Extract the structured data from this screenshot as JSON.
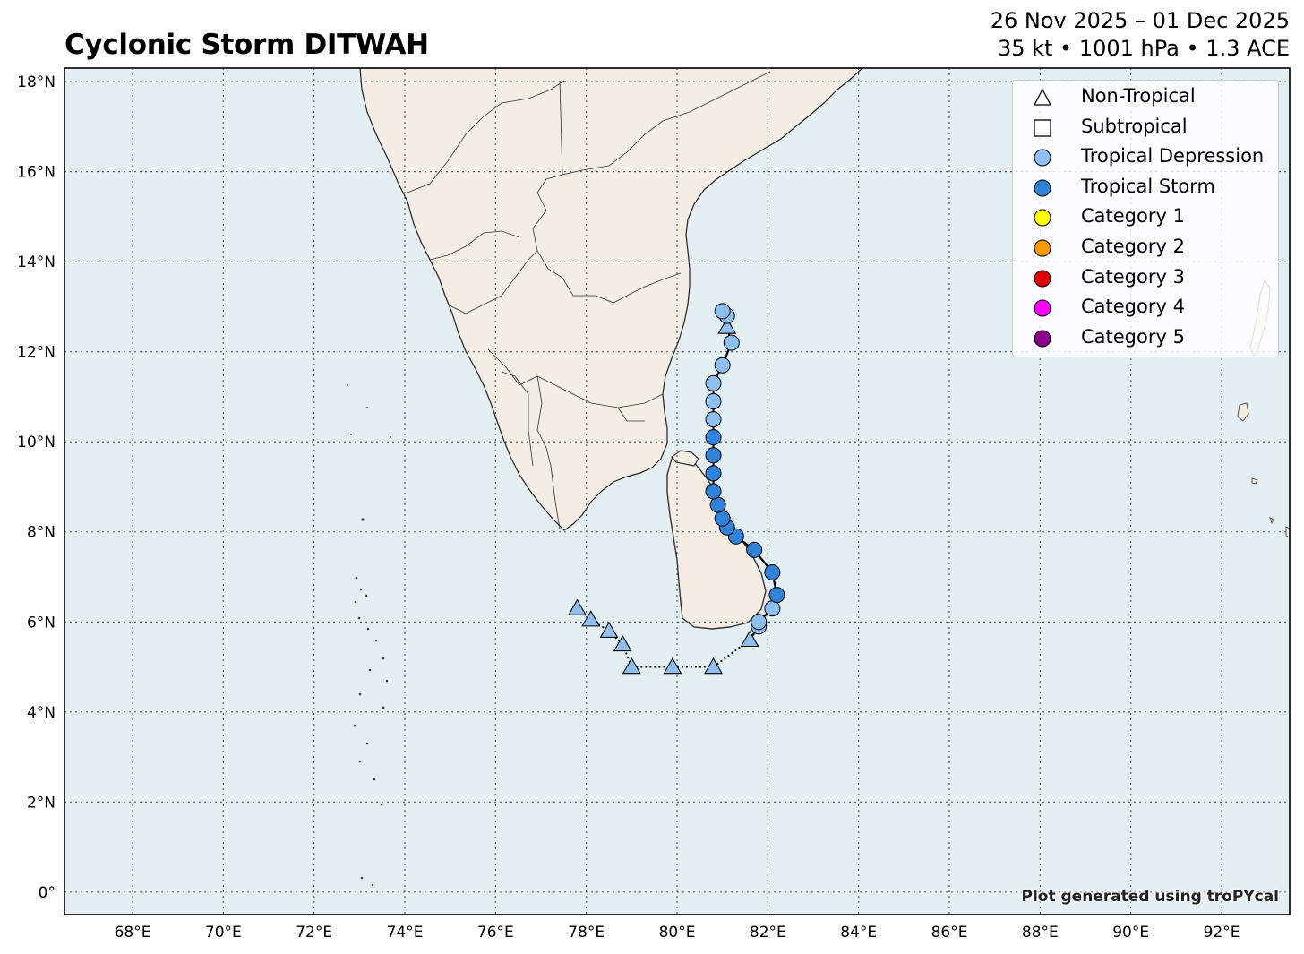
{
  "title": "Cyclonic Storm DITWAH",
  "subtitle": {
    "dates": "26 Nov 2025 – 01 Dec 2025",
    "stats": "35 kt • 1001 hPa • 1.3 ACE"
  },
  "map": {
    "lon_range": [
      66.5,
      93.5
    ],
    "lat_range": [
      -0.5,
      18.3
    ],
    "ocean_color": "#e4eff3",
    "land_color": "#f3ede3",
    "grid": true
  },
  "axes": {
    "lat_ticks": [
      {
        "value": 18,
        "label": "18°N"
      },
      {
        "value": 16,
        "label": "16°N"
      },
      {
        "value": 14,
        "label": "14°N"
      },
      {
        "value": 12,
        "label": "12°N"
      },
      {
        "value": 10,
        "label": "10°N"
      },
      {
        "value": 8,
        "label": "8°N"
      },
      {
        "value": 6,
        "label": "6°N"
      },
      {
        "value": 4,
        "label": "4°N"
      },
      {
        "value": 2,
        "label": "2°N"
      },
      {
        "value": 0,
        "label": "0°"
      }
    ],
    "lon_ticks": [
      {
        "value": 68,
        "label": "68°E"
      },
      {
        "value": 70,
        "label": "70°E"
      },
      {
        "value": 72,
        "label": "72°E"
      },
      {
        "value": 74,
        "label": "74°E"
      },
      {
        "value": 76,
        "label": "76°E"
      },
      {
        "value": 78,
        "label": "78°E"
      },
      {
        "value": 80,
        "label": "80°E"
      },
      {
        "value": 82,
        "label": "82°E"
      },
      {
        "value": 84,
        "label": "84°E"
      },
      {
        "value": 86,
        "label": "86°E"
      },
      {
        "value": 88,
        "label": "88°E"
      },
      {
        "value": 90,
        "label": "90°E"
      },
      {
        "value": 92,
        "label": "92°E"
      }
    ]
  },
  "legend": {
    "items": [
      {
        "label": "Non-Tropical",
        "shape": "triangle",
        "color": "#ffffff"
      },
      {
        "label": "Subtropical",
        "shape": "square",
        "color": "#ffffff"
      },
      {
        "label": "Tropical Depression",
        "shape": "circle",
        "color": "#8fbfef"
      },
      {
        "label": "Tropical Storm",
        "shape": "circle",
        "color": "#3282d7"
      },
      {
        "label": "Category 1",
        "shape": "circle",
        "color": "#ffff00"
      },
      {
        "label": "Category 2",
        "shape": "circle",
        "color": "#f79a08"
      },
      {
        "label": "Category 3",
        "shape": "circle",
        "color": "#e30000"
      },
      {
        "label": "Category 4",
        "shape": "circle",
        "color": "#ff00ff"
      },
      {
        "label": "Category 5",
        "shape": "circle",
        "color": "#8b008b"
      }
    ]
  },
  "credit": "Plot generated using troPYcal",
  "track": [
    {
      "lon": 77.8,
      "lat": 6.3,
      "type": "non-tropical",
      "color": "#8fbfef"
    },
    {
      "lon": 78.1,
      "lat": 6.05,
      "type": "non-tropical",
      "color": "#8fbfef"
    },
    {
      "lon": 78.5,
      "lat": 5.8,
      "type": "non-tropical",
      "color": "#8fbfef"
    },
    {
      "lon": 78.8,
      "lat": 5.5,
      "type": "non-tropical",
      "color": "#8fbfef"
    },
    {
      "lon": 79.0,
      "lat": 5.0,
      "type": "non-tropical",
      "color": "#8fbfef"
    },
    {
      "lon": 79.9,
      "lat": 5.0,
      "type": "non-tropical",
      "color": "#8fbfef"
    },
    {
      "lon": 80.8,
      "lat": 5.0,
      "type": "non-tropical",
      "color": "#8fbfef"
    },
    {
      "lon": 81.6,
      "lat": 5.6,
      "type": "non-tropical",
      "color": "#8fbfef"
    },
    {
      "lon": 81.8,
      "lat": 5.9,
      "type": "tropical-depression",
      "color": "#8fbfef"
    },
    {
      "lon": 81.8,
      "lat": 6.0,
      "type": "tropical-depression",
      "color": "#8fbfef"
    },
    {
      "lon": 82.1,
      "lat": 6.3,
      "type": "tropical-depression",
      "color": "#8fbfef"
    },
    {
      "lon": 82.2,
      "lat": 6.6,
      "type": "tropical-storm",
      "color": "#3282d7"
    },
    {
      "lon": 82.1,
      "lat": 7.1,
      "type": "tropical-storm",
      "color": "#3282d7"
    },
    {
      "lon": 81.7,
      "lat": 7.6,
      "type": "tropical-storm",
      "color": "#3282d7"
    },
    {
      "lon": 81.3,
      "lat": 7.9,
      "type": "tropical-storm",
      "color": "#3282d7"
    },
    {
      "lon": 81.1,
      "lat": 8.1,
      "type": "tropical-storm",
      "color": "#3282d7"
    },
    {
      "lon": 81.0,
      "lat": 8.3,
      "type": "tropical-storm",
      "color": "#3282d7"
    },
    {
      "lon": 80.9,
      "lat": 8.6,
      "type": "tropical-storm",
      "color": "#3282d7"
    },
    {
      "lon": 80.8,
      "lat": 8.9,
      "type": "tropical-storm",
      "color": "#3282d7"
    },
    {
      "lon": 80.8,
      "lat": 9.3,
      "type": "tropical-storm",
      "color": "#3282d7"
    },
    {
      "lon": 80.8,
      "lat": 9.7,
      "type": "tropical-storm",
      "color": "#3282d7"
    },
    {
      "lon": 80.8,
      "lat": 10.1,
      "type": "tropical-storm",
      "color": "#3282d7"
    },
    {
      "lon": 80.8,
      "lat": 10.5,
      "type": "tropical-depression",
      "color": "#8fbfef"
    },
    {
      "lon": 80.8,
      "lat": 10.9,
      "type": "tropical-depression",
      "color": "#8fbfef"
    },
    {
      "lon": 80.8,
      "lat": 11.3,
      "type": "tropical-depression",
      "color": "#8fbfef"
    },
    {
      "lon": 81.0,
      "lat": 11.7,
      "type": "tropical-depression",
      "color": "#8fbfef"
    },
    {
      "lon": 81.2,
      "lat": 12.2,
      "type": "tropical-depression",
      "color": "#8fbfef"
    },
    {
      "lon": 81.1,
      "lat": 12.55,
      "type": "non-tropical",
      "color": "#8fbfef"
    },
    {
      "lon": 81.1,
      "lat": 12.8,
      "type": "tropical-depression",
      "color": "#8fbfef"
    },
    {
      "lon": 81.0,
      "lat": 12.9,
      "type": "tropical-depression",
      "color": "#8fbfef"
    }
  ]
}
